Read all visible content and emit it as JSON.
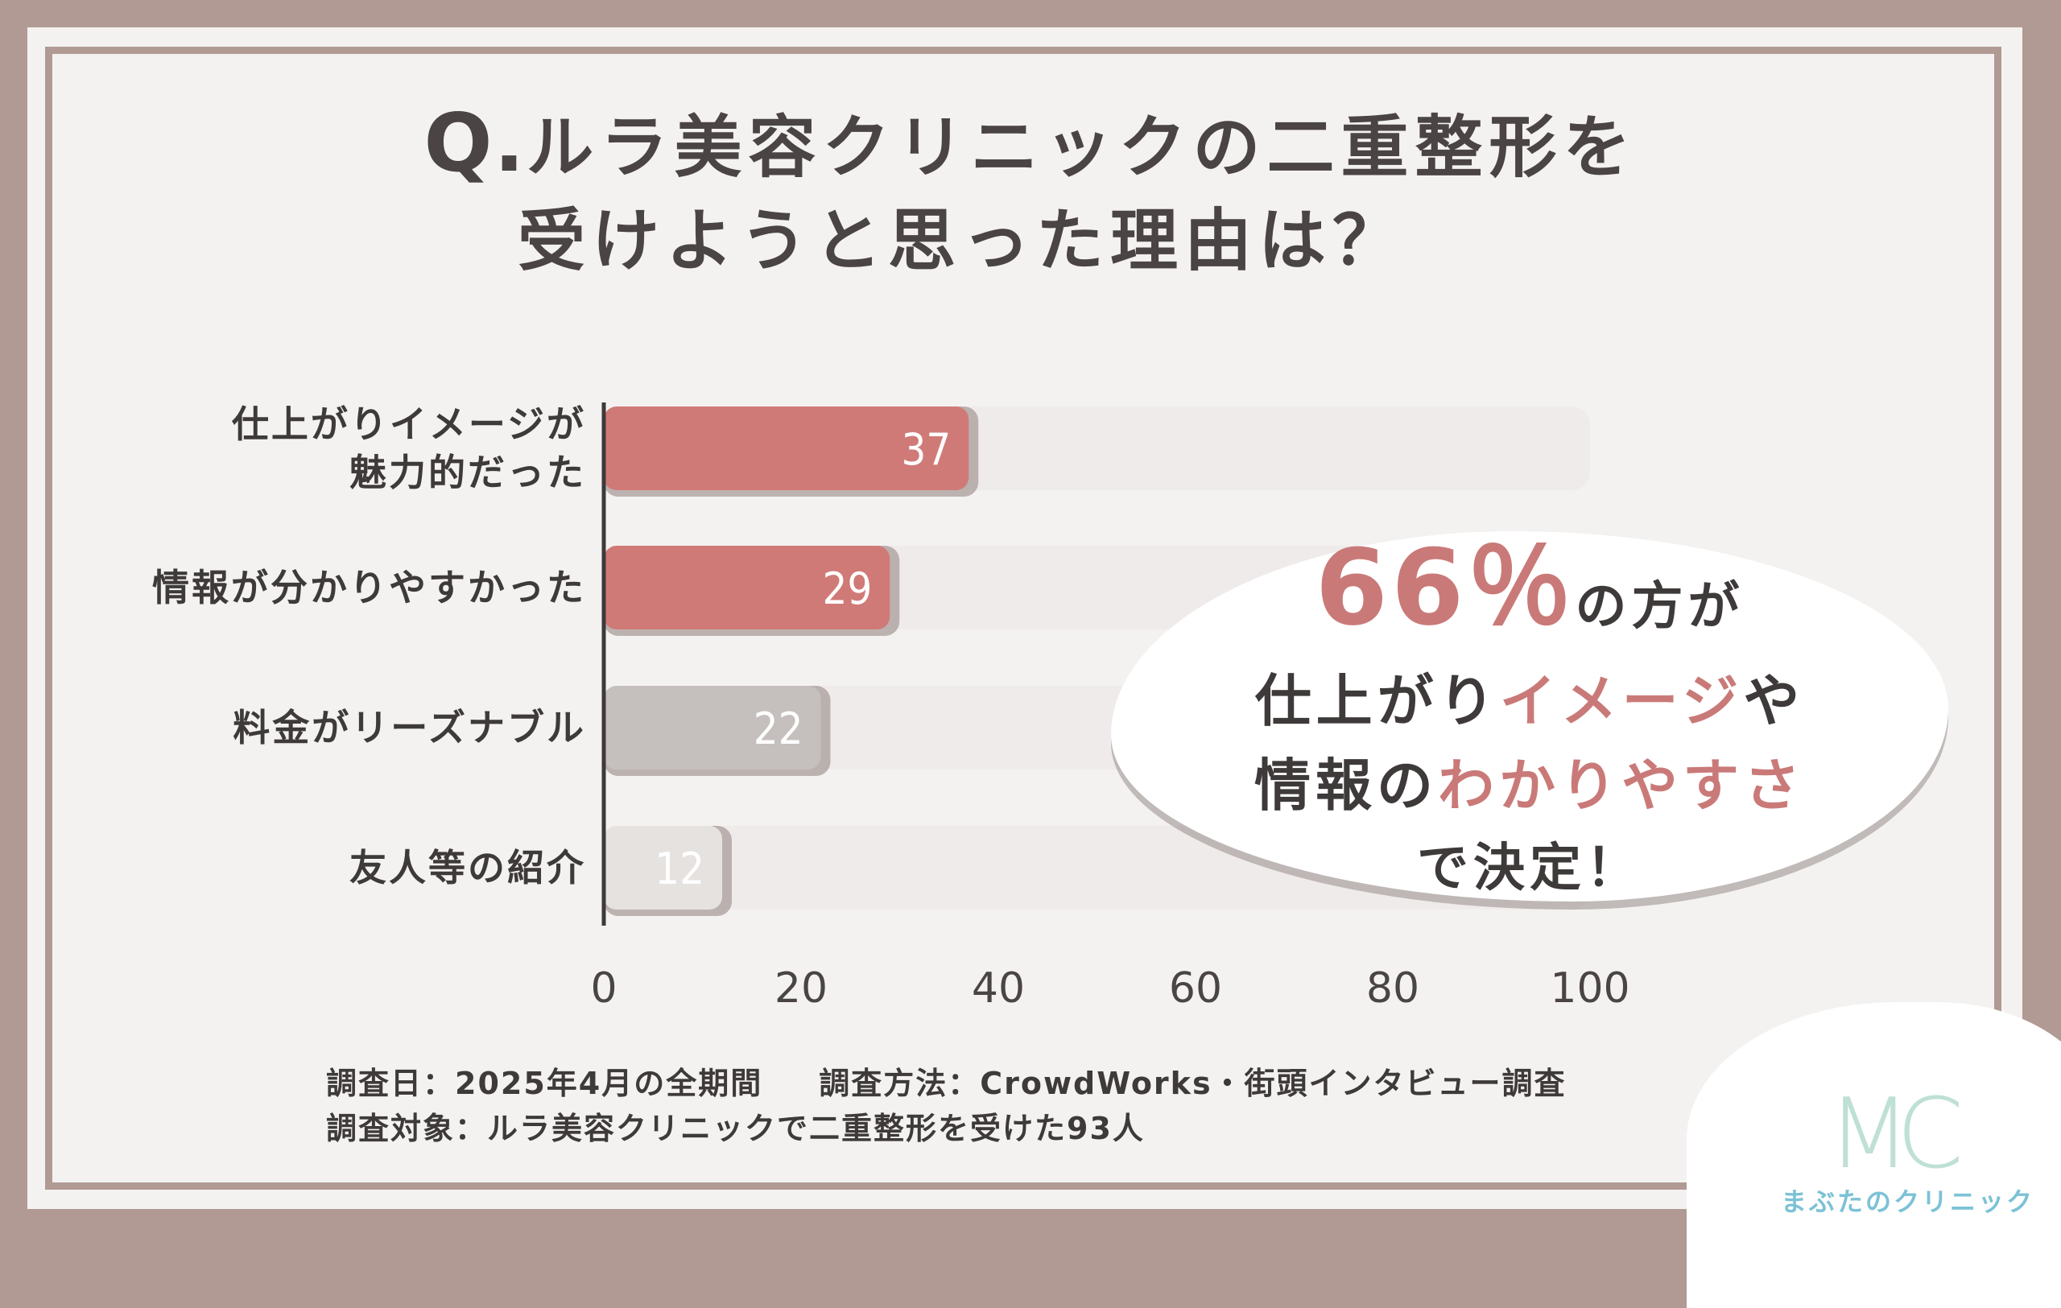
{
  "title": {
    "q": "Q.",
    "line1": "ルラ美容クリニックの二重整形を",
    "line2": "受けようと思った理由は？"
  },
  "chart_data": {
    "type": "bar",
    "orientation": "horizontal",
    "categories": [
      "仕上がりイメージが魅力的だった",
      "情報が分かりやすかった",
      "料金がリーズナブル",
      "友人等の紹介"
    ],
    "category_lines": [
      [
        "仕上がりイメージが",
        "魅力的だった"
      ],
      [
        "情報が分かりやすかった"
      ],
      [
        "料金がリーズナブル"
      ],
      [
        "友人等の紹介"
      ]
    ],
    "values": [
      37,
      29,
      22,
      12
    ],
    "bar_colors": [
      "#d07a77",
      "#d07a77",
      "#c5c0bd",
      "#e6e2e0"
    ],
    "track_color": "#efebea",
    "xlim": [
      0,
      100
    ],
    "xticks": [
      0,
      20,
      40,
      60,
      80,
      100
    ],
    "grid": false
  },
  "callout": {
    "percent": "66％",
    "line1_rest": "の方が",
    "line2_a": "仕上がり",
    "line2_b": "イメージ",
    "line2_c": "や",
    "line3_a": "情報の",
    "line3_b": "わかりやすさ",
    "line4": "で決定！",
    "accent_color": "#c97a78"
  },
  "footnote": {
    "date": "調査日：2025年4月の全期間",
    "method": "調査方法：CrowdWorks・街頭インタビュー調査",
    "target": "調査対象：ルラ美容クリニックで二重整形を受けた93人"
  },
  "logo": {
    "mark": "MC",
    "name": "まぶたのクリニック"
  }
}
